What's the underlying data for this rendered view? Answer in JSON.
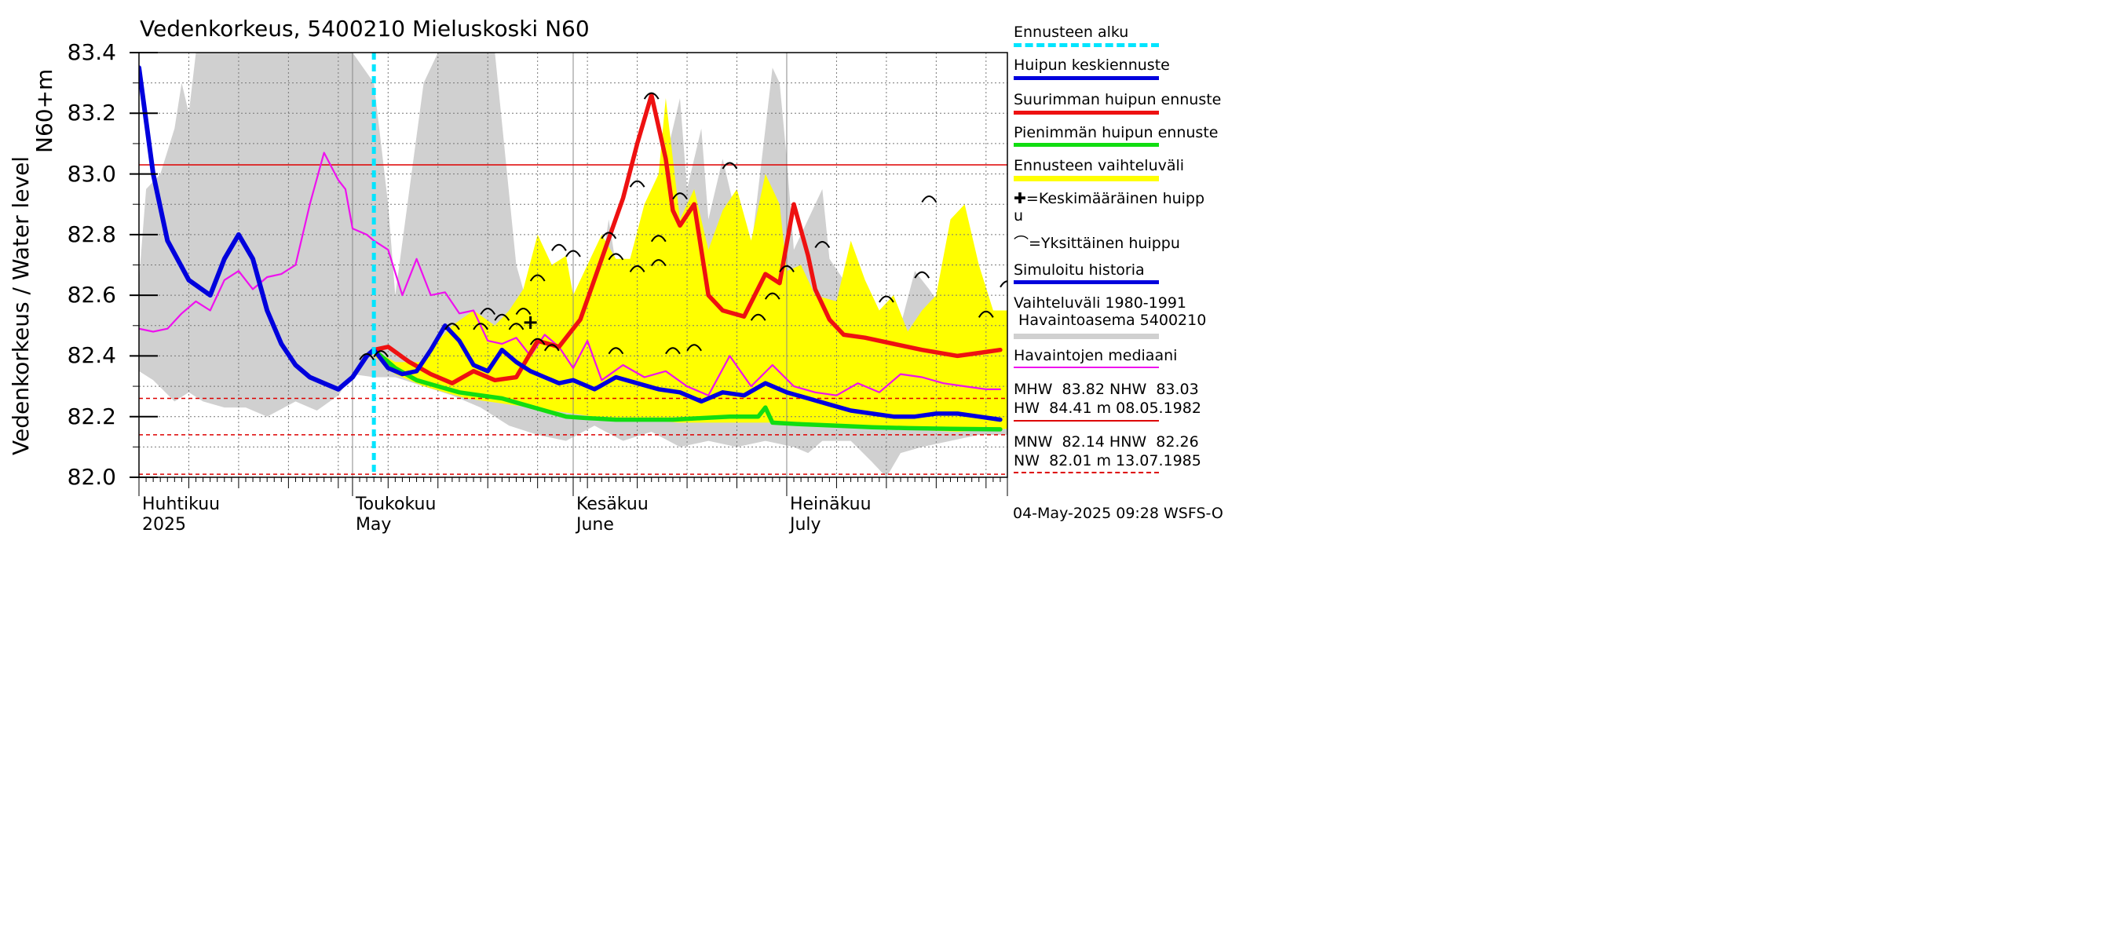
{
  "title": "Vedenkorkeus, 5400210 Mieluskoski N60",
  "ylabel_outer": "Vedenkorkeus / Water level",
  "ylabel_inner": "N60+m",
  "footer": "04-May-2025 09:28 WSFS-O",
  "colors": {
    "range_yellow": "#ffff00",
    "history_gray": "#d0d0d0",
    "forecast_start": "#00e5ff",
    "mean_peak": "#0000dd",
    "max_peak": "#ee1111",
    "min_peak": "#11dd11",
    "median": "#ee11ee",
    "ref_line": "#dd0000"
  },
  "legend": {
    "forecast_start": "Ennusteen alku",
    "mean_peak": "Huipun keskiennuste",
    "max_peak": "Suurimman huipun ennuste",
    "min_peak": "Pienimmän huipun ennuste",
    "range": "Ennusteen vaihteluväli",
    "avg_peak_1": "=Keskimääräinen huipp",
    "avg_peak_2": "u",
    "single_peak": "=Yksittäinen huippu",
    "sim_history": "Simuloitu historia",
    "var_range_1": "Vaihteluväli 1980-1991",
    "var_range_2": " Havaintoasema 5400210",
    "median": "Havaintojen mediaani"
  },
  "stats": {
    "line1": "MHW  83.82 NHW  83.03",
    "line2": "HW  84.41 m 08.05.1982",
    "line3": "MNW  82.14 HNW  82.26",
    "line4": "NW  82.01 m 13.07.1985"
  },
  "x_labels": [
    {
      "fi": "Huhtikuu",
      "en": "2025"
    },
    {
      "fi": "Toukokuu",
      "en": "May"
    },
    {
      "fi": "Kesäkuu",
      "en": "June"
    },
    {
      "fi": "Heinäkuu",
      "en": "July"
    }
  ],
  "chart_data": {
    "type": "line",
    "title": "Vedenkorkeus, 5400210 Mieluskoski N60",
    "xlabel": "",
    "ylabel": "Vedenkorkeus / Water level N60+m",
    "ylim": [
      82.0,
      83.4
    ],
    "xlim": [
      "2025-04-01",
      "2025-08-01"
    ],
    "yticks": [
      "82.0",
      "82.2",
      "82.4",
      "82.6",
      "82.8",
      "83.0",
      "83.2",
      "83.4"
    ],
    "grid": true,
    "forecast_start": "2025-05-04",
    "reference_lines": [
      {
        "name": "NHW",
        "value": 83.03,
        "style": "solid"
      },
      {
        "name": "HNW",
        "value": 82.26,
        "style": "dashed"
      },
      {
        "name": "MNW",
        "value": 82.14,
        "style": "dashed"
      },
      {
        "name": "NW",
        "value": 82.01,
        "style": "dashed"
      }
    ],
    "series": [
      {
        "name": "Simuloitu historia",
        "x": [
          "2025-04-01",
          "2025-04-03",
          "2025-04-05",
          "2025-04-08",
          "2025-04-11",
          "2025-04-13",
          "2025-04-15",
          "2025-04-17",
          "2025-04-19",
          "2025-04-21",
          "2025-04-23",
          "2025-04-25",
          "2025-04-27",
          "2025-04-29",
          "2025-05-01",
          "2025-05-03",
          "2025-05-04"
        ],
        "values": [
          83.35,
          83.0,
          82.78,
          82.65,
          82.6,
          82.72,
          82.8,
          82.72,
          82.55,
          82.44,
          82.37,
          82.33,
          82.31,
          82.29,
          82.33,
          82.4,
          82.42
        ]
      },
      {
        "name": "Huipun keskiennuste",
        "x": [
          "2025-05-04",
          "2025-05-06",
          "2025-05-08",
          "2025-05-10",
          "2025-05-12",
          "2025-05-14",
          "2025-05-16",
          "2025-05-18",
          "2025-05-20",
          "2025-05-22",
          "2025-05-24",
          "2025-05-26",
          "2025-05-28",
          "2025-05-30",
          "2025-06-01",
          "2025-06-04",
          "2025-06-07",
          "2025-06-10",
          "2025-06-13",
          "2025-06-16",
          "2025-06-19",
          "2025-06-22",
          "2025-06-25",
          "2025-06-28",
          "2025-07-01",
          "2025-07-04",
          "2025-07-07",
          "2025-07-10",
          "2025-07-13",
          "2025-07-16",
          "2025-07-19",
          "2025-07-22",
          "2025-07-25",
          "2025-07-28",
          "2025-07-31"
        ],
        "values": [
          82.42,
          82.36,
          82.34,
          82.35,
          82.42,
          82.5,
          82.45,
          82.37,
          82.35,
          82.42,
          82.38,
          82.35,
          82.33,
          82.31,
          82.32,
          82.29,
          82.33,
          82.31,
          82.29,
          82.28,
          82.25,
          82.28,
          82.27,
          82.31,
          82.28,
          82.26,
          82.24,
          82.22,
          82.21,
          82.2,
          82.2,
          82.21,
          82.21,
          82.2,
          82.19
        ]
      },
      {
        "name": "Suurimman huipun ennuste",
        "x": [
          "2025-05-04",
          "2025-05-06",
          "2025-05-09",
          "2025-05-12",
          "2025-05-15",
          "2025-05-18",
          "2025-05-21",
          "2025-05-24",
          "2025-05-27",
          "2025-05-30",
          "2025-06-02",
          "2025-06-05",
          "2025-06-08",
          "2025-06-10",
          "2025-06-12",
          "2025-06-14",
          "2025-06-15",
          "2025-06-16",
          "2025-06-18",
          "2025-06-20",
          "2025-06-22",
          "2025-06-25",
          "2025-06-28",
          "2025-06-30",
          "2025-07-02",
          "2025-07-04",
          "2025-07-05",
          "2025-07-07",
          "2025-07-09",
          "2025-07-12",
          "2025-07-16",
          "2025-07-20",
          "2025-07-25",
          "2025-07-28",
          "2025-07-31"
        ],
        "values": [
          82.42,
          82.43,
          82.38,
          82.34,
          82.31,
          82.35,
          82.32,
          82.33,
          82.45,
          82.43,
          82.52,
          82.72,
          82.92,
          83.1,
          83.26,
          83.05,
          82.88,
          82.83,
          82.9,
          82.6,
          82.55,
          82.53,
          82.67,
          82.64,
          82.9,
          82.73,
          82.62,
          82.52,
          82.47,
          82.46,
          82.44,
          82.42,
          82.4,
          82.41,
          82.42
        ]
      },
      {
        "name": "Pienimmän huipun ennuste",
        "x": [
          "2025-05-04",
          "2025-05-07",
          "2025-05-10",
          "2025-05-13",
          "2025-05-16",
          "2025-05-19",
          "2025-05-22",
          "2025-05-25",
          "2025-05-28",
          "2025-05-31",
          "2025-06-03",
          "2025-06-07",
          "2025-06-11",
          "2025-06-15",
          "2025-06-19",
          "2025-06-23",
          "2025-06-27",
          "2025-06-28",
          "2025-06-29",
          "2025-07-03",
          "2025-07-08",
          "2025-07-13",
          "2025-07-18",
          "2025-07-24",
          "2025-07-31"
        ],
        "values": [
          82.42,
          82.36,
          82.32,
          82.3,
          82.28,
          82.27,
          82.26,
          82.24,
          82.22,
          82.2,
          82.195,
          82.19,
          82.19,
          82.19,
          82.195,
          82.2,
          82.2,
          82.23,
          82.18,
          82.175,
          82.17,
          82.165,
          82.162,
          82.16,
          82.158
        ]
      },
      {
        "name": "Havaintojen mediaani",
        "x": [
          "2025-04-01",
          "2025-04-03",
          "2025-04-05",
          "2025-04-07",
          "2025-04-09",
          "2025-04-11",
          "2025-04-13",
          "2025-04-15",
          "2025-04-17",
          "2025-04-19",
          "2025-04-21",
          "2025-04-23",
          "2025-04-25",
          "2025-04-27",
          "2025-04-29",
          "2025-04-30",
          "2025-05-01",
          "2025-05-03",
          "2025-05-04",
          "2025-05-06",
          "2025-05-08",
          "2025-05-10",
          "2025-05-12",
          "2025-05-14",
          "2025-05-16",
          "2025-05-18",
          "2025-05-20",
          "2025-05-22",
          "2025-05-24",
          "2025-05-26",
          "2025-05-28",
          "2025-05-30",
          "2025-06-01",
          "2025-06-03",
          "2025-06-05",
          "2025-06-08",
          "2025-06-11",
          "2025-06-14",
          "2025-06-17",
          "2025-06-20",
          "2025-06-23",
          "2025-06-26",
          "2025-06-29",
          "2025-07-02",
          "2025-07-05",
          "2025-07-08",
          "2025-07-11",
          "2025-07-14",
          "2025-07-17",
          "2025-07-20",
          "2025-07-23",
          "2025-07-26",
          "2025-07-29",
          "2025-07-31"
        ],
        "values": [
          82.49,
          82.48,
          82.49,
          82.54,
          82.58,
          82.55,
          82.65,
          82.68,
          82.62,
          82.66,
          82.67,
          82.7,
          82.9,
          83.07,
          82.98,
          82.95,
          82.82,
          82.8,
          82.78,
          82.75,
          82.6,
          82.72,
          82.6,
          82.61,
          82.54,
          82.55,
          82.45,
          82.44,
          82.46,
          82.4,
          82.47,
          82.43,
          82.36,
          82.45,
          82.32,
          82.37,
          82.33,
          82.35,
          82.3,
          82.27,
          82.4,
          82.3,
          82.37,
          82.3,
          82.28,
          82.27,
          82.31,
          82.28,
          82.34,
          82.33,
          82.31,
          82.3,
          82.29,
          82.29
        ]
      }
    ],
    "bands": [
      {
        "name": "Ennusteen vaihteluväli"
      },
      {
        "name": "Vaihteluväli 1980-1991 Havaintoasema 5400210"
      }
    ],
    "peaks": [
      {
        "date": "2025-05-03",
        "value": 82.4
      },
      {
        "date": "2025-05-05",
        "value": 82.41
      },
      {
        "date": "2025-05-15",
        "value": 82.5
      },
      {
        "date": "2025-05-19",
        "value": 82.5
      },
      {
        "date": "2025-05-20",
        "value": 82.55
      },
      {
        "date": "2025-05-22",
        "value": 82.53
      },
      {
        "date": "2025-05-24",
        "value": 82.5
      },
      {
        "date": "2025-05-25",
        "value": 82.55
      },
      {
        "date": "2025-05-27",
        "value": 82.66
      },
      {
        "date": "2025-05-27",
        "value": 82.45
      },
      {
        "date": "2025-05-29",
        "value": 82.43
      },
      {
        "date": "2025-05-30",
        "value": 82.76
      },
      {
        "date": "2025-06-01",
        "value": 82.74
      },
      {
        "date": "2025-06-06",
        "value": 82.8
      },
      {
        "date": "2025-06-07",
        "value": 82.73
      },
      {
        "date": "2025-06-07",
        "value": 82.42
      },
      {
        "date": "2025-06-10",
        "value": 82.69
      },
      {
        "date": "2025-06-10",
        "value": 82.97
      },
      {
        "date": "2025-06-12",
        "value": 83.26
      },
      {
        "date": "2025-06-13",
        "value": 82.79
      },
      {
        "date": "2025-06-13",
        "value": 82.71
      },
      {
        "date": "2025-06-15",
        "value": 82.42
      },
      {
        "date": "2025-06-16",
        "value": 82.93
      },
      {
        "date": "2025-06-18",
        "value": 82.43
      },
      {
        "date": "2025-06-23",
        "value": 83.03
      },
      {
        "date": "2025-06-27",
        "value": 82.53
      },
      {
        "date": "2025-06-29",
        "value": 82.6
      },
      {
        "date": "2025-07-01",
        "value": 82.69
      },
      {
        "date": "2025-07-06",
        "value": 82.77
      },
      {
        "date": "2025-07-15",
        "value": 82.59
      },
      {
        "date": "2025-07-20",
        "value": 82.67
      },
      {
        "date": "2025-07-21",
        "value": 82.92
      },
      {
        "date": "2025-07-29",
        "value": 82.54
      },
      {
        "date": "2025-08-01",
        "value": 82.64
      }
    ],
    "mean_peak": {
      "date": "2025-05-26",
      "value": 82.51
    }
  }
}
